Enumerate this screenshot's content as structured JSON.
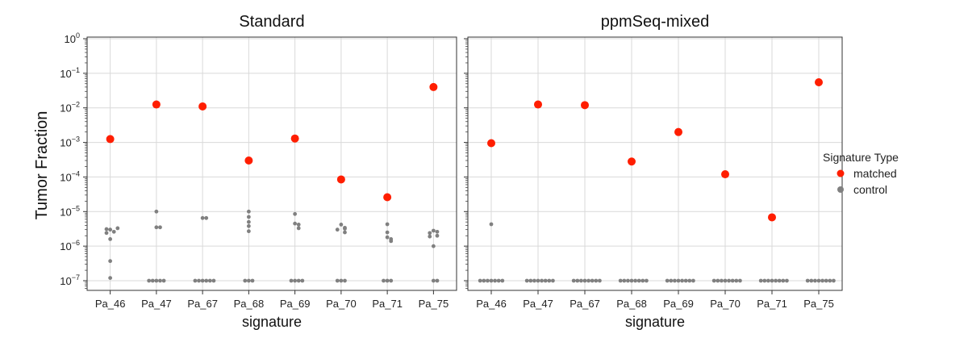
{
  "y_axis_label": "Tumor Fraction",
  "legend": {
    "title": "Signature Type",
    "entries": [
      {
        "label": "matched",
        "color": "#ff1e00"
      },
      {
        "label": "control",
        "color": "#808080"
      }
    ]
  },
  "colors": {
    "matched": "#ff1e00",
    "control": "#808080",
    "grid": "#d9d9d9",
    "axis": "#333333"
  },
  "y_ticks": [
    {
      "base": "10",
      "exp": "0"
    },
    {
      "base": "10",
      "exp": "−1"
    },
    {
      "base": "10",
      "exp": "−2"
    },
    {
      "base": "10",
      "exp": "−3"
    },
    {
      "base": "10",
      "exp": "−4"
    },
    {
      "base": "10",
      "exp": "−5"
    },
    {
      "base": "10",
      "exp": "−6"
    },
    {
      "base": "10",
      "exp": "−7"
    }
  ],
  "chart_data": [
    {
      "type": "scatter",
      "title": "Standard",
      "xlabel": "signature",
      "ylabel": "Tumor Fraction",
      "yscale": "log",
      "ylim": [
        5e-08,
        1
      ],
      "grid": true,
      "categories": [
        "Pa_46",
        "Pa_47",
        "Pa_67",
        "Pa_68",
        "Pa_69",
        "Pa_70",
        "Pa_71",
        "Pa_75"
      ],
      "series": [
        {
          "name": "matched",
          "values": [
            0.00125,
            0.0125,
            0.011,
            0.0003,
            0.0013,
            8.5e-05,
            2.6e-05,
            0.04
          ]
        },
        {
          "name": "control",
          "points": [
            [
              3e-06,
              2.6e-06,
              3.1e-06,
              2.4e-06,
              3.3e-06,
              1.6e-06,
              3.7e-07,
              1.2e-07
            ],
            [
              1e-05,
              3.5e-06,
              3.5e-06,
              1e-07,
              1e-07,
              1e-07,
              1e-07,
              1e-07
            ],
            [
              6.5e-06,
              6.5e-06,
              1e-07,
              1e-07,
              1e-07,
              1e-07,
              1e-07,
              1e-07
            ],
            [
              1e-05,
              7e-06,
              5e-06,
              3.8e-06,
              2.7e-06,
              1e-07,
              1e-07,
              1e-07
            ],
            [
              8.5e-06,
              4.5e-06,
              4.2e-06,
              3.3e-06,
              1e-07,
              1e-07,
              1e-07,
              1e-07
            ],
            [
              4.2e-06,
              3.4e-06,
              3.2e-06,
              3e-06,
              2.5e-06,
              1e-07,
              1e-07,
              1e-07
            ],
            [
              4.3e-06,
              2.5e-06,
              1.8e-06,
              1.6e-06,
              1.4e-06,
              1e-07,
              1e-07,
              1e-07
            ],
            [
              2.8e-06,
              2.6e-06,
              2.4e-06,
              2e-06,
              1.9e-06,
              1e-06,
              1e-07,
              1e-07
            ]
          ]
        }
      ]
    },
    {
      "type": "scatter",
      "title": "ppmSeq-mixed",
      "xlabel": "signature",
      "ylabel": "",
      "yscale": "log",
      "ylim": [
        5e-08,
        1
      ],
      "grid": true,
      "categories": [
        "Pa_46",
        "Pa_47",
        "Pa_67",
        "Pa_68",
        "Pa_69",
        "Pa_70",
        "Pa_71",
        "Pa_75"
      ],
      "series": [
        {
          "name": "matched",
          "values": [
            0.00095,
            0.0125,
            0.012,
            0.00028,
            0.002,
            0.00012,
            6.8e-06,
            0.055
          ]
        },
        {
          "name": "control",
          "points": [
            [
              4.3e-06,
              1e-07,
              1e-07,
              1e-07,
              1e-07,
              1e-07,
              1e-07,
              1e-07
            ],
            [
              1e-07,
              1e-07,
              1e-07,
              1e-07,
              1e-07,
              1e-07,
              1e-07,
              1e-07
            ],
            [
              1e-07,
              1e-07,
              1e-07,
              1e-07,
              1e-07,
              1e-07,
              1e-07,
              1e-07
            ],
            [
              1e-07,
              1e-07,
              1e-07,
              1e-07,
              1e-07,
              1e-07,
              1e-07,
              1e-07
            ],
            [
              1e-07,
              1e-07,
              1e-07,
              1e-07,
              1e-07,
              1e-07,
              1e-07,
              1e-07
            ],
            [
              1e-07,
              1e-07,
              1e-07,
              1e-07,
              1e-07,
              1e-07,
              1e-07,
              1e-07
            ],
            [
              1e-07,
              1e-07,
              1e-07,
              1e-07,
              1e-07,
              1e-07,
              1e-07,
              1e-07
            ],
            [
              1e-07,
              1e-07,
              1e-07,
              1e-07,
              1e-07,
              1e-07,
              1e-07,
              1e-07
            ]
          ]
        }
      ]
    }
  ]
}
